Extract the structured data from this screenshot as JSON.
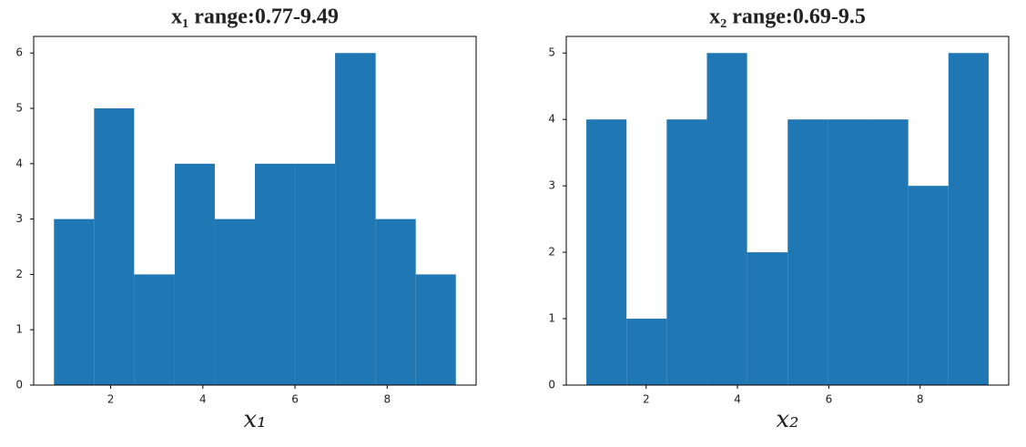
{
  "chart_data": [
    {
      "type": "histogram",
      "title": "x₁ range:0.77-9.49",
      "xlabel": "x₁",
      "bins": [
        0.77,
        1.64,
        2.51,
        3.39,
        4.26,
        5.13,
        6.0,
        6.87,
        7.75,
        8.62,
        9.49
      ],
      "values": [
        3,
        5,
        2,
        4,
        3,
        4,
        4,
        6,
        3,
        2
      ],
      "color": "#1f77b4",
      "xlim": [
        0.33,
        9.93
      ],
      "xticks": [
        2,
        4,
        6,
        8
      ],
      "ylim": [
        0,
        6.3
      ],
      "yticks": [
        0,
        1,
        2,
        3,
        4,
        5,
        6
      ]
    },
    {
      "type": "histogram",
      "title": "x₂ range:0.69-9.5",
      "xlabel": "x₂",
      "bins": [
        0.69,
        1.57,
        2.45,
        3.33,
        4.21,
        5.1,
        5.98,
        6.86,
        7.74,
        8.62,
        9.5
      ],
      "values": [
        4,
        1,
        4,
        5,
        2,
        4,
        4,
        4,
        3,
        5
      ],
      "color": "#1f77b4",
      "xlim": [
        0.25,
        9.94
      ],
      "xticks": [
        2,
        4,
        6,
        8
      ],
      "ylim": [
        0,
        5.25
      ],
      "yticks": [
        0,
        1,
        2,
        3,
        4,
        5
      ]
    }
  ]
}
